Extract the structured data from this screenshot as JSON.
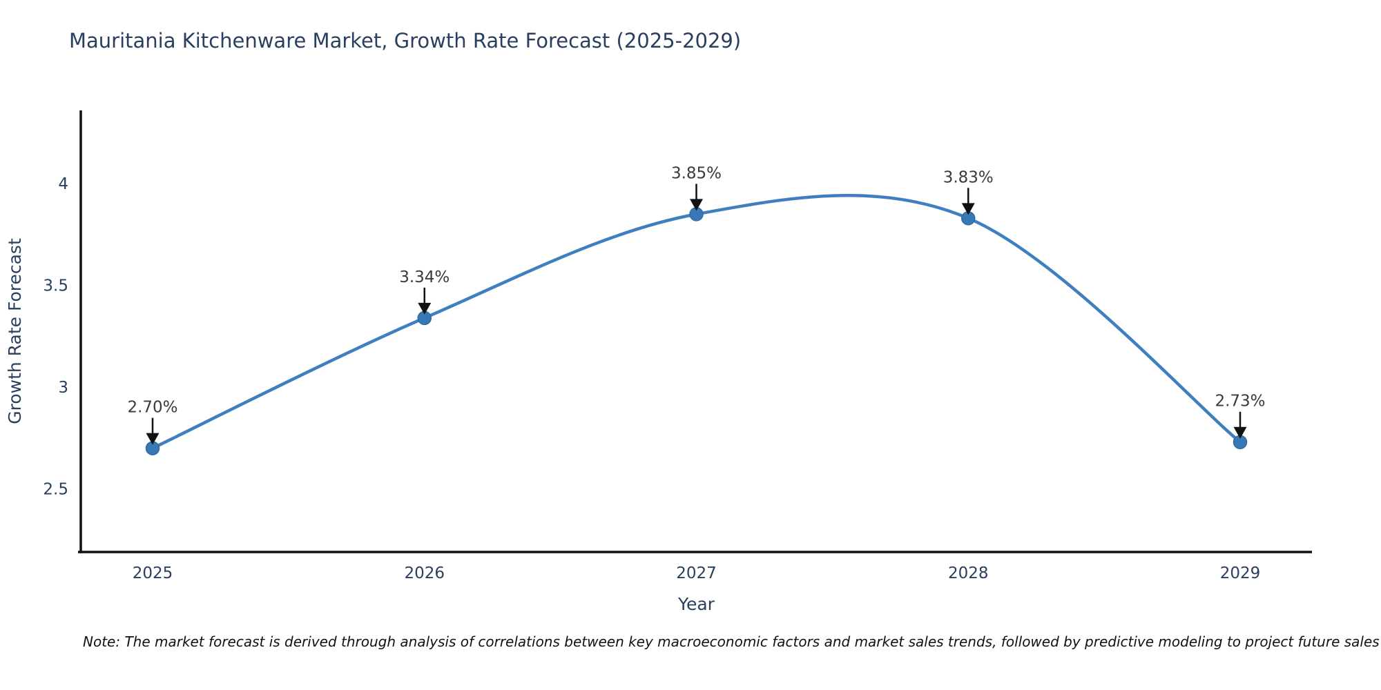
{
  "title": "Mauritania Kitchenware Market, Growth Rate Forecast (2025-2029)",
  "note": "Note: The market forecast is derived through analysis of correlations between key macroeconomic factors and market sales trends, followed by predictive modeling to project future sales",
  "chart_data": {
    "type": "line",
    "line_shape": "spline",
    "title": "Mauritania Kitchenware Market, Growth Rate Forecast (2025-2029)",
    "xlabel": "Year",
    "ylabel": "Growth Rate Forecast",
    "categories": [
      "2025",
      "2026",
      "2027",
      "2028",
      "2029"
    ],
    "values": [
      2.7,
      3.34,
      3.85,
      3.83,
      2.73
    ],
    "point_labels": [
      "2.70%",
      "3.34%",
      "3.85%",
      "3.83%",
      "2.73%"
    ],
    "yticks": [
      2.5,
      3,
      3.5,
      4
    ],
    "ytick_labels": [
      "2.5",
      "3",
      "3.5",
      "4"
    ],
    "ylim": [
      2.19,
      4.36
    ],
    "grid": false,
    "legend": "none",
    "annotations_have_arrows": true,
    "colors": {
      "line": "#3f7fbf",
      "marker_fill": "#3878b4",
      "marker_edge": "#2f6ba3",
      "axis": "#111111",
      "axis_text": "#2a3f5f",
      "annotation_text": "#3a3a3a",
      "arrow": "#111111"
    }
  }
}
